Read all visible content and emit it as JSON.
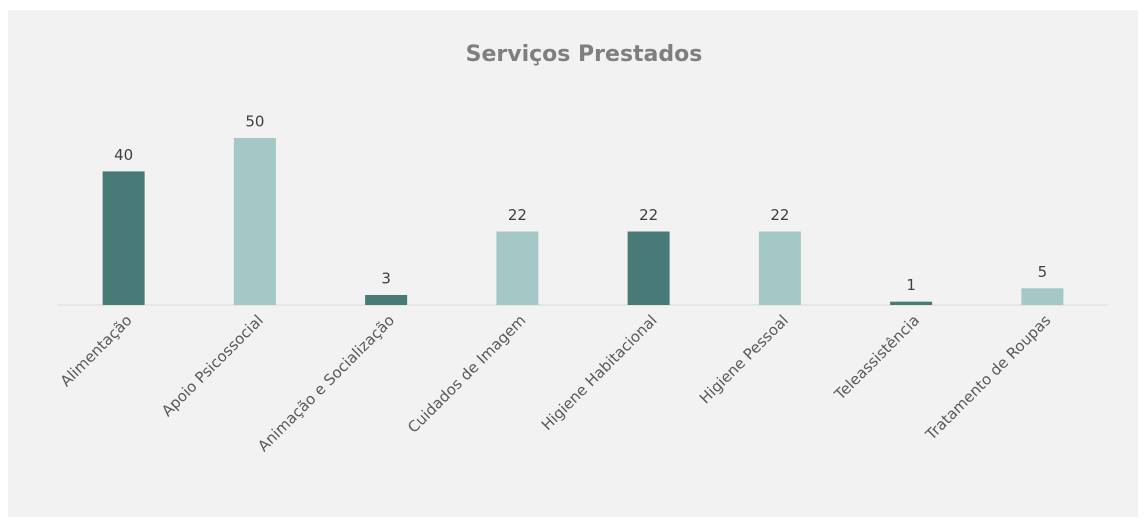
{
  "chart_data": {
    "type": "bar",
    "title": "Serviços Prestados",
    "categories": [
      "Alimentação",
      "Apoio Psicossocial",
      "Animação e Socialização",
      "Cuidados de Imagem",
      "Higiene Habitacional",
      "Higiene Pessoal",
      "Teleassistência",
      "Tratamento de Roupas"
    ],
    "values": [
      40,
      50,
      3,
      22,
      22,
      22,
      1,
      5
    ],
    "colors": [
      "#487a77",
      "#a3c8c6",
      "#487a77",
      "#a3c8c6",
      "#487a77",
      "#a3c8c6",
      "#487a77",
      "#a3c8c6"
    ],
    "ylim": [
      0,
      60
    ]
  }
}
